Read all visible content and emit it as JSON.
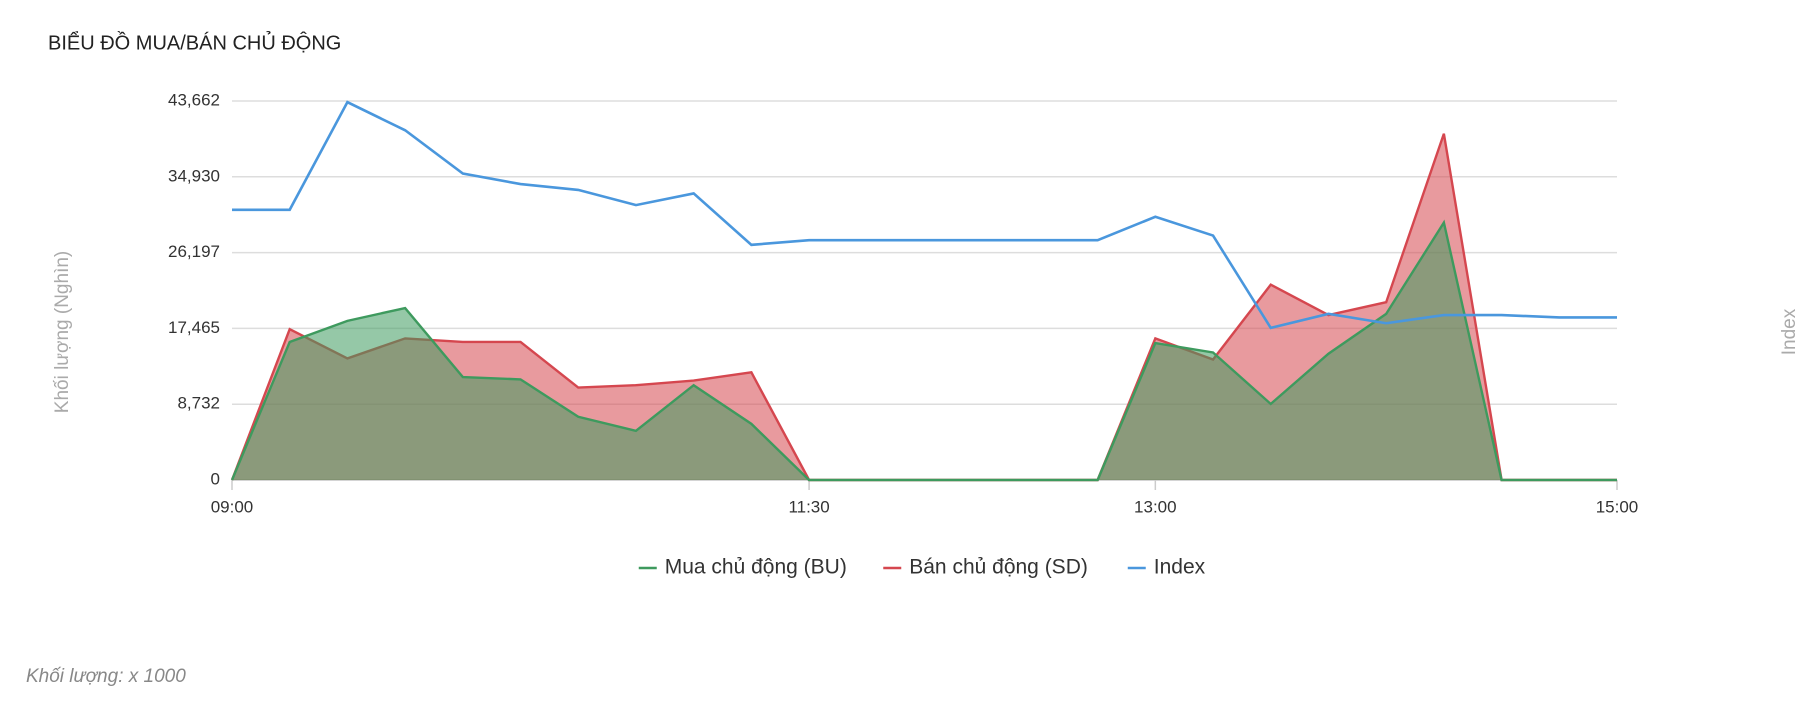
{
  "chart_data": {
    "type": "area",
    "title": "BIỂU ĐỒ MUA/BÁN CHỦ ĐỘNG",
    "ylabel": "Khối lượng (Nghìn)",
    "y2label": "Index",
    "note": "Khối lượng: x 1000",
    "x": [
      "09:00",
      "09:15",
      "09:30",
      "09:45",
      "10:00",
      "10:15",
      "10:30",
      "10:45",
      "11:00",
      "11:15",
      "11:30",
      "11:45",
      "12:00",
      "12:15",
      "12:30",
      "12:45",
      "13:00",
      "13:15",
      "13:30",
      "13:45",
      "14:00",
      "14:15",
      "14:30",
      "14:45",
      "15:00"
    ],
    "xlim": [
      "09:00",
      "15:00"
    ],
    "xticks": [
      "09:00",
      "11:30",
      "13:00",
      "15:00"
    ],
    "ylim": [
      0,
      43662
    ],
    "yticks": [
      0,
      {
        "value": 8732,
        "label": "8,732"
      },
      {
        "value": 17465,
        "label": "17,465"
      },
      {
        "value": 26197,
        "label": "26,197"
      },
      {
        "value": 34930,
        "label": "34,930"
      },
      {
        "value": 43662,
        "label": "43,662"
      }
    ],
    "grid": true,
    "legend": "bottom",
    "series": [
      {
        "name": "Mua chủ động (BU)",
        "color": "#3e9a5e",
        "kind": "area",
        "values": [
          0,
          15900,
          18330,
          19810,
          11860,
          11590,
          7280,
          5660,
          10920,
          6470,
          0,
          0,
          0,
          0,
          0,
          0,
          15770,
          14690,
          8760,
          14550,
          19140,
          29650,
          0,
          0,
          0
        ]
      },
      {
        "name": "Bán chủ động (SD)",
        "color": "#d5474f",
        "kind": "area",
        "values": [
          0,
          17380,
          14010,
          16310,
          15900,
          15900,
          10650,
          10920,
          11450,
          12400,
          0,
          0,
          0,
          0,
          0,
          0,
          16310,
          13880,
          22500,
          19000,
          20480,
          39890,
          0,
          0,
          0
        ]
      },
      {
        "name": "Index",
        "color": "#4a97dd",
        "kind": "line",
        "values": [
          31130,
          31130,
          43530,
          40290,
          35310,
          34090,
          33420,
          31670,
          33010,
          27090,
          27630,
          27630,
          27630,
          27630,
          27630,
          27630,
          30320,
          28160,
          17520,
          19140,
          18060,
          19000,
          19000,
          18730,
          18730
        ]
      }
    ]
  }
}
